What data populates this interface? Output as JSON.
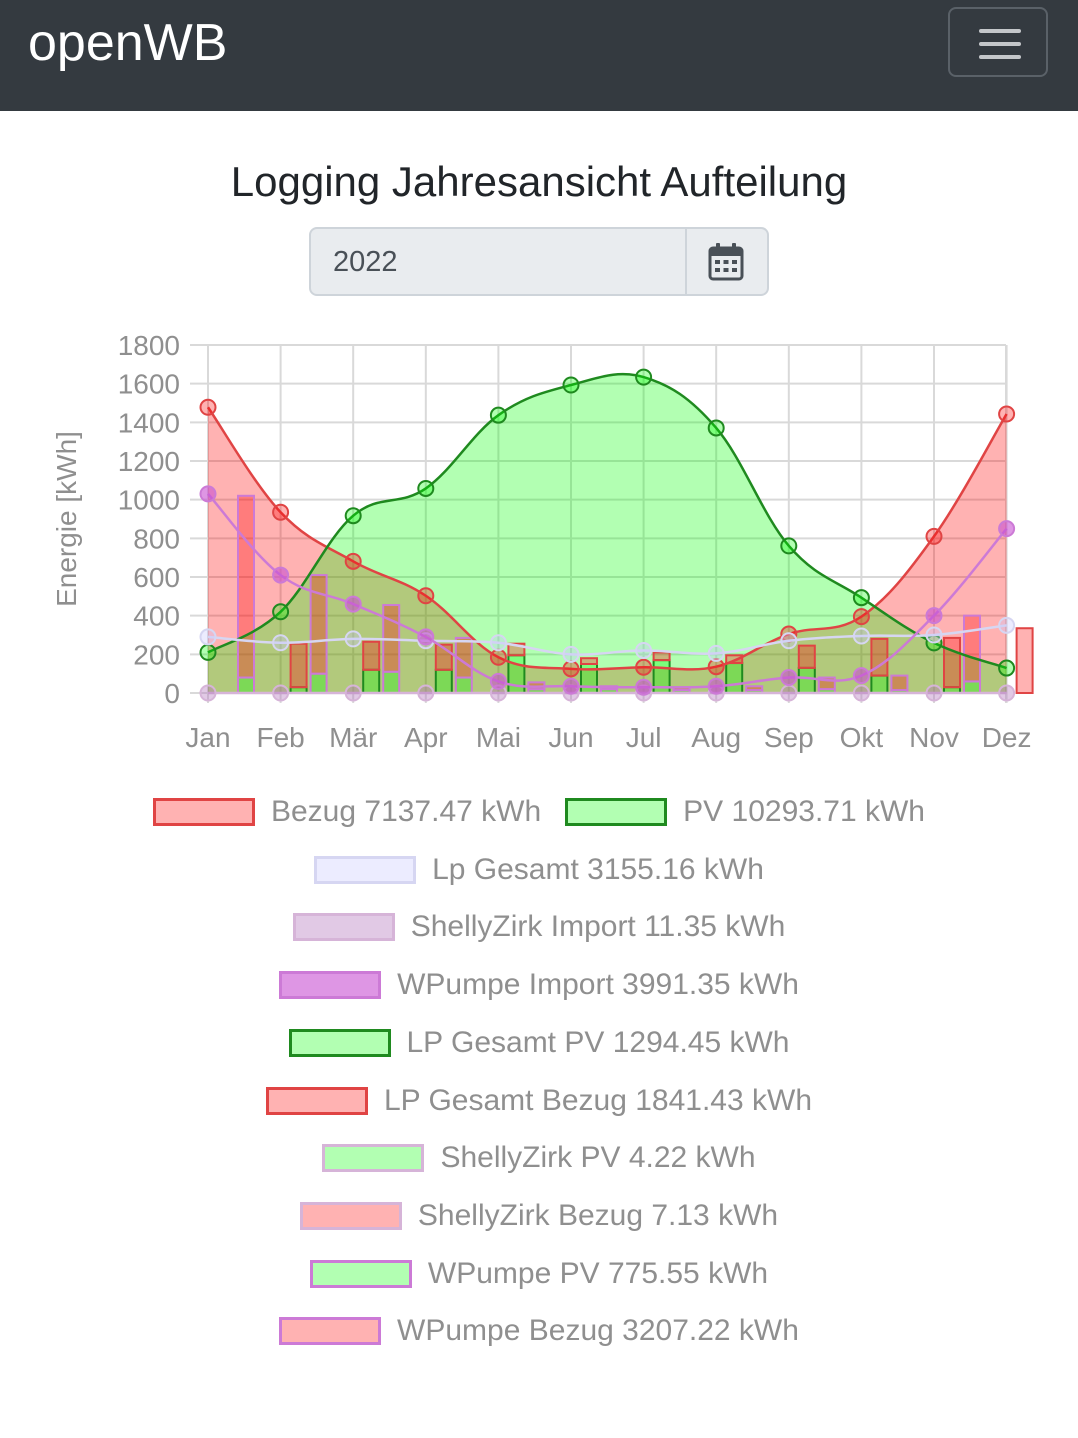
{
  "navbar": {
    "brand": "openWB"
  },
  "page": {
    "title": "Logging Jahresansicht Aufteilung"
  },
  "date_picker": {
    "value": "2022"
  },
  "icons": {
    "calendar": "calendar-icon",
    "menu": "hamburger-menu-icon"
  },
  "chart_data": {
    "type": "mixed-line-bar",
    "ylabel": "Energie [kWh]",
    "ylim": [
      0,
      1800
    ],
    "yticks": [
      0,
      200,
      400,
      600,
      800,
      1000,
      1200,
      1400,
      1600,
      1800
    ],
    "categories": [
      "Jan",
      "Feb",
      "Mär",
      "Apr",
      "Mai",
      "Jun",
      "Jul",
      "Aug",
      "Sep",
      "Okt",
      "Nov",
      "Dez"
    ],
    "grid": true,
    "legend_position": "bottom",
    "lines": [
      {
        "name": "Bezug 7137.47 kWh",
        "fill": "rgba(255,0,0,0.3)",
        "stroke": "#e04444",
        "filled": true,
        "values": [
          1478,
          935,
          681,
          503,
          185,
          125,
          133,
          136,
          305,
          395,
          810,
          1443
        ]
      },
      {
        "name": "PV 10293.71 kWh",
        "fill": "rgba(0,255,0,0.3)",
        "stroke": "#1f8a1f",
        "filled": true,
        "values": [
          210,
          420,
          917,
          1058,
          1437,
          1593,
          1634,
          1371,
          761,
          493,
          259,
          129
        ]
      },
      {
        "name": "Lp Gesamt 3155.16 kWh",
        "fill": "rgba(200,200,255,0.35)",
        "stroke": "#d6d6f2",
        "filled": false,
        "values": [
          290,
          260,
          280,
          270,
          260,
          200,
          220,
          205,
          270,
          295,
          300,
          350
        ]
      },
      {
        "name": "ShellyZirk Import 11.35 kWh",
        "fill": "rgba(180,120,190,0.4)",
        "stroke": "#d6b4d8",
        "filled": false,
        "values": [
          0,
          0,
          0,
          0,
          0,
          0,
          0,
          0,
          0,
          0,
          0,
          0
        ]
      },
      {
        "name": "WPumpe Import 3991.35 kWh",
        "fill": "rgba(200,80,210,0.6)",
        "stroke": "#cc7ad6",
        "filled": false,
        "values": [
          1030,
          610,
          460,
          290,
          60,
          35,
          30,
          35,
          80,
          90,
          400,
          850
        ]
      }
    ],
    "bars": [
      {
        "name": "LP Gesamt PV 1294.45 kWh",
        "fill": "rgba(0,255,0,0.3)",
        "stroke": "#1f8a1f",
        "offset": 0,
        "values": [
          0,
          30,
          120,
          120,
          195,
          150,
          170,
          155,
          130,
          90,
          30,
          0
        ]
      },
      {
        "name": "LP Gesamt Bezug 1841.43 kWh",
        "fill": "rgba(255,0,0,0.3)",
        "stroke": "#e04444",
        "offset": 0,
        "values": [
          0,
          225,
          145,
          130,
          60,
          30,
          40,
          40,
          115,
          190,
          255,
          335
        ]
      },
      {
        "name": "ShellyZirk PV 4.22 kWh",
        "fill": "rgba(0,255,0,0.3)",
        "stroke": "#d6b4d8",
        "offset": 1,
        "values": [
          0,
          0,
          0,
          0,
          0,
          0,
          0,
          0,
          0,
          0,
          0,
          0
        ]
      },
      {
        "name": "ShellyZirk Bezug 7.13 kWh",
        "fill": "rgba(255,0,0,0.3)",
        "stroke": "#d6b4d8",
        "offset": 1,
        "values": [
          0,
          0,
          0,
          0,
          0,
          0,
          0,
          0,
          0,
          0,
          0,
          0
        ]
      },
      {
        "name": "WPumpe PV 775.55 kWh",
        "fill": "rgba(0,255,0,0.3)",
        "stroke": "#cc7ad6",
        "offset": 1,
        "values": [
          80,
          100,
          110,
          80,
          20,
          20,
          15,
          15,
          20,
          15,
          60,
          0
        ]
      },
      {
        "name": "WPumpe Bezug 3207.22 kWh",
        "fill": "rgba(255,0,0,0.3)",
        "stroke": "#cc7ad6",
        "offset": 1,
        "values": [
          940,
          510,
          345,
          205,
          35,
          15,
          15,
          20,
          60,
          75,
          340,
          0
        ]
      }
    ]
  }
}
